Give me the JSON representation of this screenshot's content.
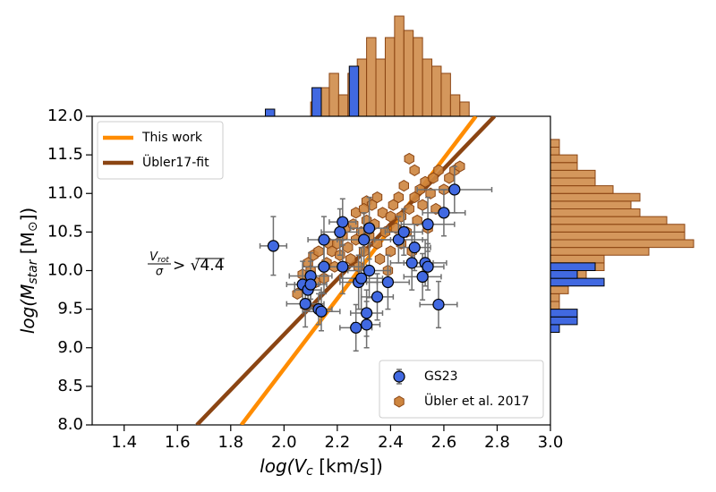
{
  "chart_data": {
    "type": "scatter",
    "xlabel": [
      "log(V",
      "c",
      " [km/s])"
    ],
    "ylabel": [
      "log(M",
      "star",
      " [M",
      "⊙",
      "])"
    ],
    "xlim": [
      1.28,
      3.0
    ],
    "ylim": [
      8.0,
      12.0
    ],
    "xticks": [
      1.4,
      1.6,
      1.8,
      {
        "value": 2,
        "label": "2.0"
      },
      2.2,
      2.4,
      2.6,
      2.8,
      {
        "value": 3,
        "label": "3.0"
      }
    ],
    "yticks": [
      {
        "value": 8,
        "label": "8.0"
      },
      8.5,
      {
        "value": 9,
        "label": "9.0"
      },
      9.5,
      {
        "value": 10,
        "label": "10.0"
      },
      10.5,
      {
        "value": 11,
        "label": "11.0"
      },
      11.5,
      {
        "value": 12,
        "label": "12.0"
      }
    ],
    "annotation": {
      "numerator": "V",
      "numerator_sub": "rot",
      "denominator": "σ",
      "relation": "> √4.4"
    },
    "lines_legend": "upper left",
    "markers_legend": "lower right",
    "lines": [
      {
        "name": "This work",
        "color": "#ff8c00",
        "x": [
          1.84,
          2.72
        ],
        "values": [
          8.0,
          12.0
        ]
      },
      {
        "name": "Übler17-fit",
        "color": "#8b4513",
        "x": [
          1.673,
          2.79
        ],
        "values": [
          8.0,
          12.0
        ]
      }
    ],
    "series": [
      {
        "name": "GS23",
        "marker": "circle",
        "color": "#4169e1",
        "edgecolor": "#000000",
        "x": [
          1.96,
          2.07,
          2.08,
          2.09,
          2.1,
          2.1,
          2.13,
          2.14,
          2.15,
          2.15,
          2.21,
          2.22,
          2.22,
          2.27,
          2.28,
          2.29,
          2.3,
          2.31,
          2.31,
          2.32,
          2.32,
          2.35,
          2.39,
          2.43,
          2.45,
          2.48,
          2.49,
          2.52,
          2.53,
          2.54,
          2.54,
          2.58,
          2.6,
          2.64
        ],
        "values": [
          10.32,
          9.82,
          9.57,
          9.75,
          9.93,
          9.82,
          9.5,
          9.47,
          10.4,
          10.05,
          10.5,
          10.63,
          10.05,
          9.26,
          9.85,
          9.9,
          10.4,
          9.3,
          9.45,
          10.0,
          10.55,
          9.66,
          9.85,
          10.4,
          10.5,
          10.1,
          10.3,
          9.92,
          10.1,
          10.05,
          10.6,
          9.56,
          10.75,
          11.05
        ],
        "xerr": [
          0.05,
          0.06,
          0.07,
          0.05,
          0.08,
          0.06,
          0.05,
          0.07,
          0.06,
          0.08,
          0.07,
          0.05,
          0.09,
          0.06,
          0.07,
          0.08,
          0.1,
          0.05,
          0.06,
          0.08,
          0.07,
          0.06,
          0.08,
          0.09,
          0.07,
          0.08,
          0.06,
          0.07,
          0.08,
          0.06,
          0.1,
          0.07,
          0.08,
          0.14
        ],
        "yerr": [
          0.38,
          0.3,
          0.3,
          0.25,
          0.3,
          0.3,
          0.2,
          0.25,
          0.3,
          0.35,
          0.3,
          0.3,
          0.35,
          0.3,
          0.35,
          0.4,
          0.35,
          0.3,
          0.3,
          0.35,
          0.4,
          0.3,
          0.35,
          0.3,
          0.3,
          0.35,
          0.3,
          0.3,
          0.3,
          0.3,
          0.35,
          0.3,
          0.3,
          0.3
        ]
      },
      {
        "name": "Übler et al. 2017",
        "marker": "hexagon",
        "color": "#cd853f",
        "edgecolor": "#8b4513",
        "x": [
          2.05,
          2.07,
          2.08,
          2.09,
          2.1,
          2.11,
          2.12,
          2.13,
          2.15,
          2.16,
          2.17,
          2.18,
          2.19,
          2.2,
          2.21,
          2.22,
          2.23,
          2.24,
          2.25,
          2.26,
          2.27,
          2.27,
          2.28,
          2.29,
          2.3,
          2.31,
          2.31,
          2.32,
          2.33,
          2.34,
          2.35,
          2.35,
          2.36,
          2.37,
          2.38,
          2.39,
          2.4,
          2.4,
          2.41,
          2.42,
          2.43,
          2.44,
          2.44,
          2.45,
          2.46,
          2.47,
          2.47,
          2.48,
          2.49,
          2.49,
          2.5,
          2.51,
          2.52,
          2.53,
          2.54,
          2.55,
          2.56,
          2.57,
          2.58,
          2.6,
          2.62,
          2.64,
          2.66,
          2.15,
          2.3
        ],
        "values": [
          9.7,
          9.95,
          9.55,
          10.1,
          10.0,
          10.2,
          9.85,
          10.25,
          9.9,
          10.1,
          10.35,
          10.25,
          10.05,
          10.35,
          10.2,
          10.45,
          10.55,
          10.3,
          10.15,
          10.6,
          10.75,
          10.4,
          10.05,
          10.5,
          10.25,
          10.65,
          10.9,
          10.45,
          10.85,
          10.6,
          10.35,
          10.95,
          10.15,
          10.75,
          10.5,
          10.0,
          10.7,
          10.25,
          10.85,
          10.55,
          10.95,
          10.35,
          10.7,
          11.1,
          10.5,
          10.8,
          11.45,
          10.25,
          11.3,
          10.95,
          10.65,
          11.05,
          10.85,
          11.15,
          10.55,
          11.0,
          11.2,
          10.8,
          11.3,
          11.05,
          11.2,
          11.3,
          11.35,
          10.4,
          10.8
        ]
      }
    ],
    "hist_x": [
      {
        "color": "#cd853f",
        "bins": [
          2.1,
          2.135,
          2.17,
          2.205,
          2.24,
          2.275,
          2.31,
          2.345,
          2.38,
          2.415,
          2.45,
          2.485,
          2.52,
          2.555,
          2.59,
          2.625,
          2.66,
          2.695
        ],
        "counts": [
          2,
          4,
          6,
          3,
          6,
          8,
          11,
          8,
          11,
          14,
          12,
          11,
          8,
          7,
          6,
          3,
          2
        ]
      },
      {
        "color": "#4169e1",
        "bins": [
          1.93,
          1.965,
          2.0,
          2.035,
          2.07,
          2.105,
          2.14,
          2.175,
          2.21,
          2.245,
          2.28
        ],
        "counts": [
          1,
          0,
          0,
          0,
          0,
          4,
          0,
          0,
          0,
          7
        ]
      }
    ],
    "hist_y": [
      {
        "color": "#cd853f",
        "bins": [
          9.2,
          9.3,
          9.4,
          9.5,
          9.6,
          9.7,
          9.8,
          9.9,
          10.0,
          10.1,
          10.2,
          10.3,
          10.4,
          10.5,
          10.6,
          10.7,
          10.8,
          10.9,
          11.0,
          11.1,
          11.2,
          11.3,
          11.4,
          11.5,
          11.6,
          11.7
        ],
        "counts": [
          0,
          0,
          0,
          1,
          1,
          2,
          2,
          4,
          6,
          6,
          11,
          16,
          15,
          15,
          13,
          10,
          9,
          10,
          7,
          5,
          5,
          3,
          3,
          1,
          1
        ]
      },
      {
        "color": "#4169e1",
        "bins": [
          9.2,
          9.3,
          9.4,
          9.5,
          9.6,
          9.7,
          9.8,
          9.9,
          10.0,
          10.1
        ],
        "counts": [
          1,
          3,
          3,
          0,
          0,
          0,
          6,
          3,
          5
        ]
      }
    ]
  }
}
